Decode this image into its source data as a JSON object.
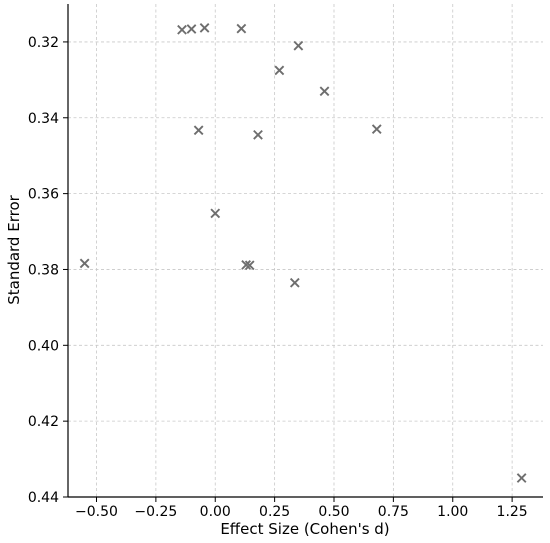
{
  "chart_data": {
    "type": "scatter",
    "title": "",
    "xlabel": "Effect Size (Cohen's d)",
    "ylabel": "Standard Error",
    "xlim": [
      -0.62,
      1.38
    ],
    "ylim": [
      0.44,
      0.31
    ],
    "y_inverted": true,
    "grid": true,
    "marker": "x",
    "marker_color": "#6e6e6e",
    "x_ticks": [
      -0.5,
      -0.25,
      0.0,
      0.25,
      0.5,
      0.75,
      1.0,
      1.25
    ],
    "x_tick_labels": [
      "−0.50",
      "−0.25",
      "0.00",
      "0.25",
      "0.50",
      "0.75",
      "1.00",
      "1.25"
    ],
    "y_ticks": [
      0.32,
      0.34,
      0.36,
      0.38,
      0.4,
      0.42,
      0.44
    ],
    "y_tick_labels": [
      "0.32",
      "0.34",
      "0.36",
      "0.38",
      "0.40",
      "0.42",
      "0.44"
    ],
    "points": [
      {
        "x": -0.14,
        "y": 0.3168
      },
      {
        "x": -0.1,
        "y": 0.3166
      },
      {
        "x": -0.045,
        "y": 0.3163
      },
      {
        "x": 0.11,
        "y": 0.3165
      },
      {
        "x": 0.35,
        "y": 0.321
      },
      {
        "x": 0.27,
        "y": 0.3275
      },
      {
        "x": 0.46,
        "y": 0.333
      },
      {
        "x": 0.68,
        "y": 0.343
      },
      {
        "x": -0.07,
        "y": 0.3433
      },
      {
        "x": 0.18,
        "y": 0.3445
      },
      {
        "x": 0.0,
        "y": 0.3652
      },
      {
        "x": -0.55,
        "y": 0.3784
      },
      {
        "x": 0.13,
        "y": 0.3788
      },
      {
        "x": 0.145,
        "y": 0.3789
      },
      {
        "x": 0.335,
        "y": 0.3835
      },
      {
        "x": 1.29,
        "y": 0.435
      }
    ]
  }
}
